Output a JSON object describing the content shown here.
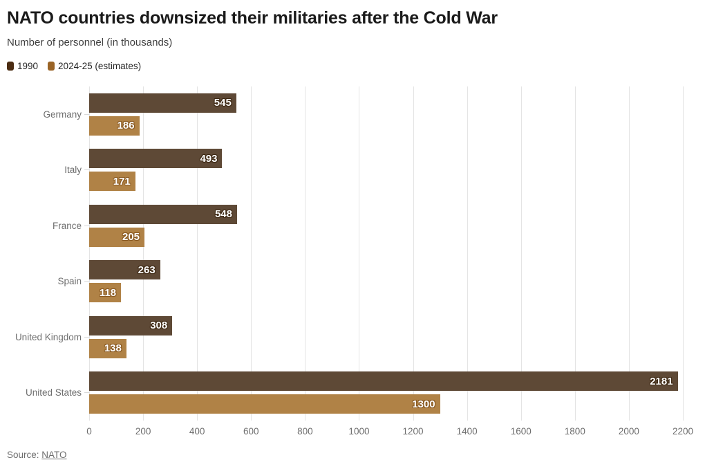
{
  "header": {
    "title": "NATO countries downsized their militaries after the Cold War",
    "subtitle": "Number of personnel (in thousands)"
  },
  "legend": {
    "items": [
      {
        "label": "1990",
        "color": "#4b2c12"
      },
      {
        "label": "2024-25 (estimates)",
        "color": "#9a6426"
      }
    ]
  },
  "chart_data": {
    "type": "bar",
    "orientation": "horizontal",
    "title": "NATO countries downsized their militaries after the Cold War",
    "subtitle": "Number of personnel (in thousands)",
    "categories": [
      "Germany",
      "Italy",
      "France",
      "Spain",
      "United Kingdom",
      "United States"
    ],
    "series": [
      {
        "name": "1990",
        "color": "#5e4936",
        "label_stroke": "#3f2a15",
        "values": [
          545,
          493,
          548,
          263,
          308,
          2181
        ]
      },
      {
        "name": "2024-25 (estimates)",
        "color": "#b08246",
        "label_stroke": "#8a5a22",
        "values": [
          186,
          171,
          205,
          118,
          138,
          1300
        ]
      }
    ],
    "xlim": [
      0,
      2200
    ],
    "xticks": [
      0,
      200,
      400,
      600,
      800,
      1000,
      1200,
      1400,
      1600,
      1800,
      2000,
      2200
    ],
    "grid": "vertical",
    "legend_position": "top",
    "value_labels": "inside-end"
  },
  "footer": {
    "source_prefix": "Source: ",
    "source_link": "NATO"
  }
}
